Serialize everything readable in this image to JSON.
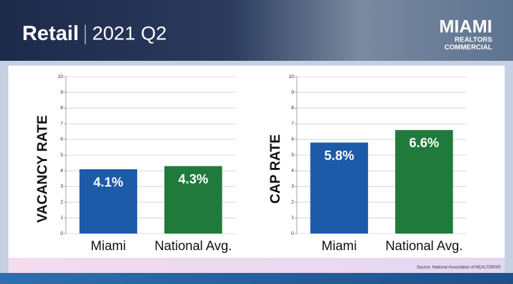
{
  "header": {
    "title": "Retail",
    "subtitle": "2021 Q2"
  },
  "logo": {
    "name": "MIAMI",
    "line1": "REALTORS",
    "line2": "COMMERCIAL"
  },
  "chart_data": [
    {
      "type": "bar",
      "y_label": "VACANCY RATE",
      "categories": [
        "Miami",
        "National Avg."
      ],
      "values": [
        4.1,
        4.3
      ],
      "value_labels": [
        "4.1%",
        "4.3%"
      ],
      "colors": [
        "#1d5aa8",
        "#1f7a3b"
      ],
      "ylim": [
        0,
        10
      ],
      "yticks": [
        0,
        1,
        2,
        3,
        4,
        5,
        6,
        7,
        8,
        9,
        10
      ],
      "grid": true
    },
    {
      "type": "bar",
      "y_label": "CAP RATE",
      "categories": [
        "Miami",
        "National Avg."
      ],
      "values": [
        5.8,
        6.6
      ],
      "value_labels": [
        "5.8%",
        "6.6%"
      ],
      "colors": [
        "#1d5aa8",
        "#1f7a3b"
      ],
      "ylim": [
        0,
        10
      ],
      "yticks": [
        0,
        1,
        2,
        3,
        4,
        5,
        6,
        7,
        8,
        9,
        10
      ],
      "grid": true
    }
  ],
  "source": "Source: National Association of REALTORS®"
}
